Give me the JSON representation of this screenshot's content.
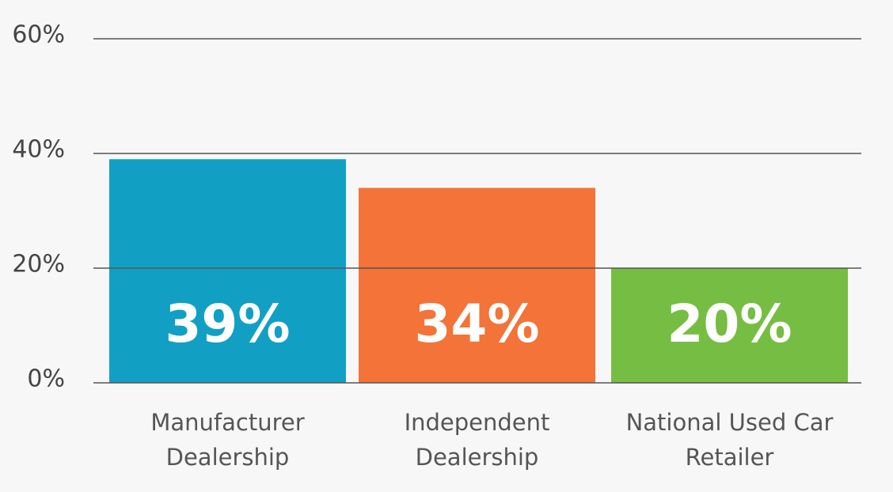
{
  "chart_data": {
    "type": "bar",
    "categories": [
      "Manufacturer Dealership",
      "Independent Dealership",
      "National Used Car Retailer"
    ],
    "values": [
      39,
      34,
      20
    ],
    "value_labels": [
      "39%",
      "34%",
      "20%"
    ],
    "colors": [
      "#11a0c4",
      "#f37338",
      "#76bd43"
    ],
    "ylim": [
      0,
      60
    ],
    "yticks": [
      {
        "value": 0,
        "label": "0%"
      },
      {
        "value": 20,
        "label": "20%"
      },
      {
        "value": 40,
        "label": "40%"
      },
      {
        "value": 60,
        "label": "60%"
      }
    ],
    "grid": true
  }
}
